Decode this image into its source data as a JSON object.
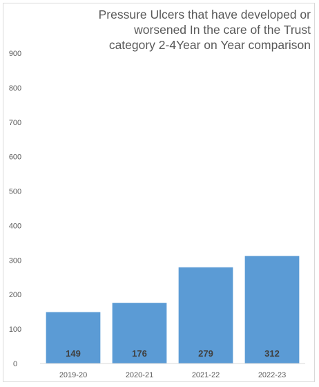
{
  "chart_data": {
    "type": "bar",
    "title_lines": [
      "Pressure Ulcers that have developed or",
      "worsened In the care of the Trust",
      "category 2-4Year on Year comparison"
    ],
    "categories": [
      "2019-20",
      "2020-21",
      "2021-22",
      "2022-23"
    ],
    "values": [
      149,
      176,
      279,
      312
    ],
    "y_ticks": [
      0,
      100,
      200,
      300,
      400,
      500,
      600,
      700,
      800,
      900
    ],
    "ylim": [
      0,
      900
    ],
    "bar_color": "#5b9bd5",
    "grid": false,
    "legend": "none"
  }
}
